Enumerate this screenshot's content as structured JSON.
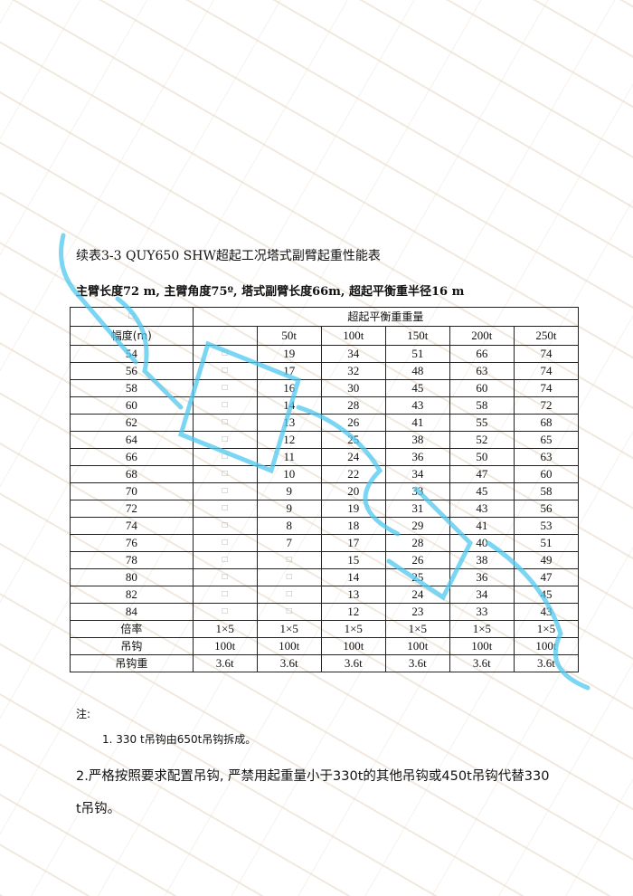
{
  "watermark": {
    "text": "成都巨象吊装",
    "color": "#e6d6c4",
    "overlay_color": "#4dc8ef"
  },
  "title": "续表3-3 QUY650 SHW超起工况塔式副臂起重性能表",
  "subtitle": "主臂长度72 m, 主臂角度75º, 塔式副臂长度66m, 超起平衡重半径16 m",
  "table": {
    "corner": "□",
    "group_header": "超起平衡重重量",
    "row_header": "幅度(m)",
    "columns": [
      "",
      "50t",
      "100t",
      "150t",
      "200t",
      "250t"
    ],
    "rows": [
      [
        "54",
        "□",
        "19",
        "34",
        "51",
        "66",
        "74"
      ],
      [
        "56",
        "□",
        "17",
        "32",
        "48",
        "63",
        "74"
      ],
      [
        "58",
        "□",
        "16",
        "30",
        "45",
        "60",
        "74"
      ],
      [
        "60",
        "□",
        "14",
        "28",
        "43",
        "58",
        "72"
      ],
      [
        "62",
        "□",
        "13",
        "26",
        "41",
        "55",
        "68"
      ],
      [
        "64",
        "□",
        "12",
        "25",
        "38",
        "52",
        "65"
      ],
      [
        "66",
        "□",
        "11",
        "24",
        "36",
        "50",
        "63"
      ],
      [
        "68",
        "□",
        "10",
        "22",
        "34",
        "47",
        "60"
      ],
      [
        "70",
        "□",
        "9",
        "20",
        "33",
        "45",
        "58"
      ],
      [
        "72",
        "□",
        "9",
        "19",
        "31",
        "43",
        "56"
      ],
      [
        "74",
        "□",
        "8",
        "18",
        "29",
        "41",
        "53"
      ],
      [
        "76",
        "□",
        "7",
        "17",
        "28",
        "40",
        "51"
      ],
      [
        "78",
        "□",
        "□",
        "15",
        "26",
        "38",
        "49"
      ],
      [
        "80",
        "□",
        "□",
        "14",
        "25",
        "36",
        "47"
      ],
      [
        "82",
        "□",
        "□",
        "13",
        "24",
        "34",
        "45"
      ],
      [
        "84",
        "□",
        "□",
        "12",
        "23",
        "33",
        "43"
      ]
    ],
    "footer_rows": [
      [
        "倍率",
        "1×5",
        "1×5",
        "1×5",
        "1×5",
        "1×5",
        "1×5"
      ],
      [
        "吊钩",
        "100t",
        "100t",
        "100t",
        "100t",
        "100t",
        "100t"
      ],
      [
        "吊钩重",
        "3.6t",
        "3.6t",
        "3.6t",
        "3.6t",
        "3.6t",
        "3.6t"
      ]
    ]
  },
  "notes": {
    "label": "注:",
    "item1": "1. 330 t吊钩由650t吊钩拆成。",
    "item2_line1": "2.严格按照要求配置吊钩, 严禁用起重量小于330t的其他吊钩或450t吊钩代替330",
    "item2_line2": "t吊钩。"
  }
}
